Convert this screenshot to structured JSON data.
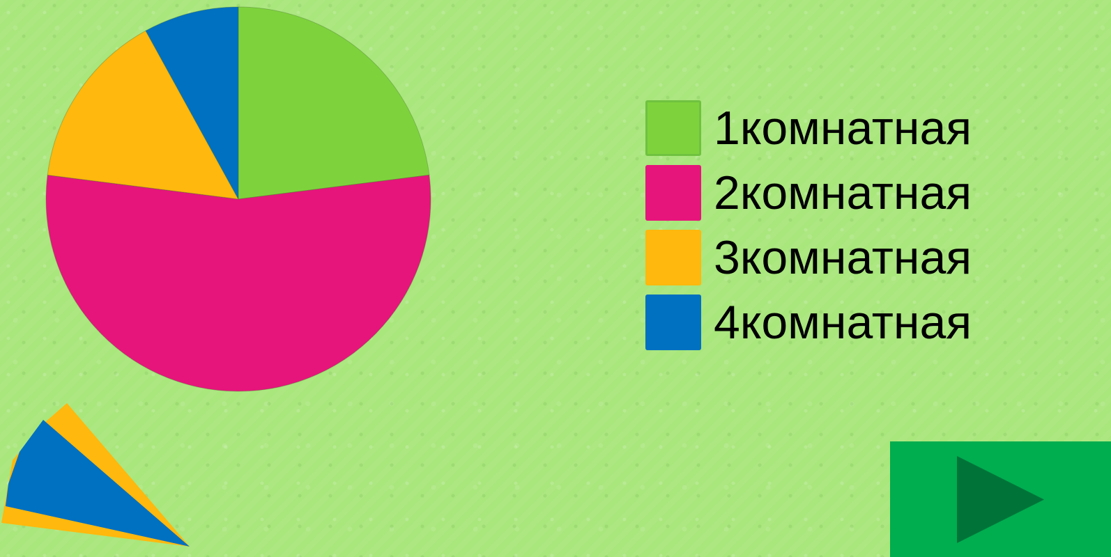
{
  "chart_data": {
    "type": "pie",
    "title": "",
    "series": [
      {
        "name": "",
        "values": [
          23,
          54,
          15,
          8
        ]
      }
    ],
    "categories": [
      "1комнатная",
      "2комнатная",
      "3комнатная",
      "4комнатная"
    ],
    "colors": [
      "#7ed33c",
      "#e6157b",
      "#ffb80d",
      "#0070c0"
    ],
    "legend": {
      "position": "right",
      "items": [
        {
          "label": "1комнатная",
          "color": "#7ed33c"
        },
        {
          "label": "2комнатная",
          "color": "#e6157b"
        },
        {
          "label": "3комнатная",
          "color": "#ffb80d"
        },
        {
          "label": "4комнатная",
          "color": "#0070c0"
        }
      ]
    }
  },
  "decoration": {
    "icon": "pie-wedge-decoration-icon",
    "colors": [
      "#ffb80d",
      "#0070c0"
    ]
  },
  "navigation": {
    "next_icon": "play-arrow-icon",
    "button_color": "#00ad4f",
    "arrow_color": "#007438"
  }
}
